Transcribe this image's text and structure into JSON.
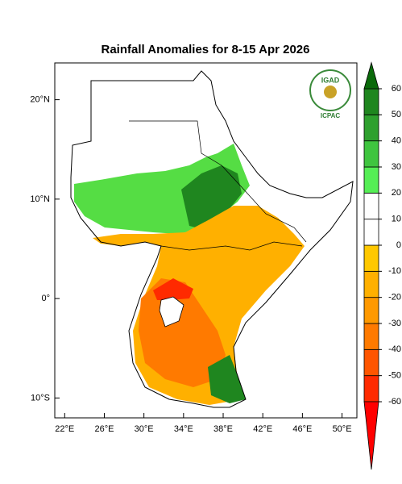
{
  "chart_data": {
    "type": "map",
    "title": "Rainfall Anomalies for 8-15 Apr 2026",
    "xlim": [
      21,
      51.5
    ],
    "ylim": [
      -12,
      23.7
    ],
    "xticks": [
      {
        "value": 22,
        "label": "22°E"
      },
      {
        "value": 26,
        "label": "26°E"
      },
      {
        "value": 30,
        "label": "30°E"
      },
      {
        "value": 34,
        "label": "34°E"
      },
      {
        "value": 38,
        "label": "38°E"
      },
      {
        "value": 42,
        "label": "42°E"
      },
      {
        "value": 46,
        "label": "46°E"
      },
      {
        "value": 50,
        "label": "50°E"
      }
    ],
    "yticks": [
      {
        "value": 20,
        "label": "20°N"
      },
      {
        "value": 10,
        "label": "10°N"
      },
      {
        "value": 0,
        "label": "0°"
      },
      {
        "value": -10,
        "label": "10°S"
      }
    ],
    "colorbar": {
      "ticks": [
        -60,
        -50,
        -40,
        -30,
        -20,
        -10,
        0,
        10,
        20,
        30,
        40,
        50,
        60
      ],
      "colors": [
        "#ff0000",
        "#ff2a00",
        "#ff5500",
        "#ff7a00",
        "#ff9900",
        "#ffb000",
        "#ffc800",
        "#ffffff",
        "#ffffff",
        "#55ee55",
        "#3fc53f",
        "#2ea02e",
        "#1f861f",
        "#0a6a0a"
      ]
    },
    "logo": {
      "name": "IGAD",
      "org": "ICPAC"
    }
  }
}
